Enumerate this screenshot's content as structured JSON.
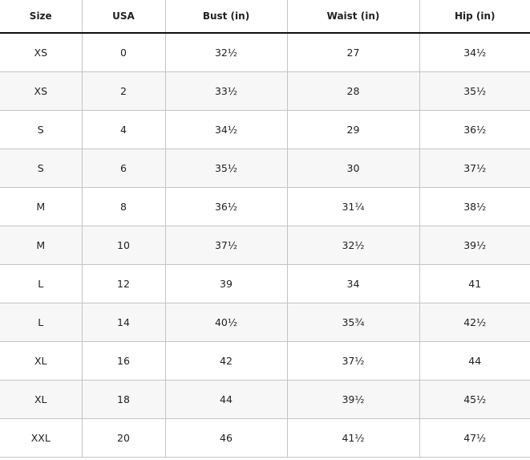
{
  "table": {
    "headers": [
      "Size",
      "USA",
      "Bust (in)",
      "Waist (in)",
      "Hip (in)"
    ],
    "rows": [
      [
        "XS",
        "0",
        "32½",
        "27",
        "34½"
      ],
      [
        "XS",
        "2",
        "33½",
        "28",
        "35½"
      ],
      [
        "S",
        "4",
        "34½",
        "29",
        "36½"
      ],
      [
        "S",
        "6",
        "35½",
        "30",
        "37½"
      ],
      [
        "M",
        "8",
        "36½",
        "31¼",
        "38½"
      ],
      [
        "M",
        "10",
        "37½",
        "32½",
        "39½"
      ],
      [
        "L",
        "12",
        "39",
        "34",
        "41"
      ],
      [
        "L",
        "14",
        "40½",
        "35¾",
        "42½"
      ],
      [
        "XL",
        "16",
        "42",
        "37½",
        "44"
      ],
      [
        "XL",
        "18",
        "44",
        "39½",
        "45½"
      ],
      [
        "XXL",
        "20",
        "46",
        "41½",
        "47½"
      ]
    ]
  },
  "colors": {
    "alt_row": "#f7f7f7",
    "border": "#c4c4c4",
    "header_rule": "#111111"
  }
}
